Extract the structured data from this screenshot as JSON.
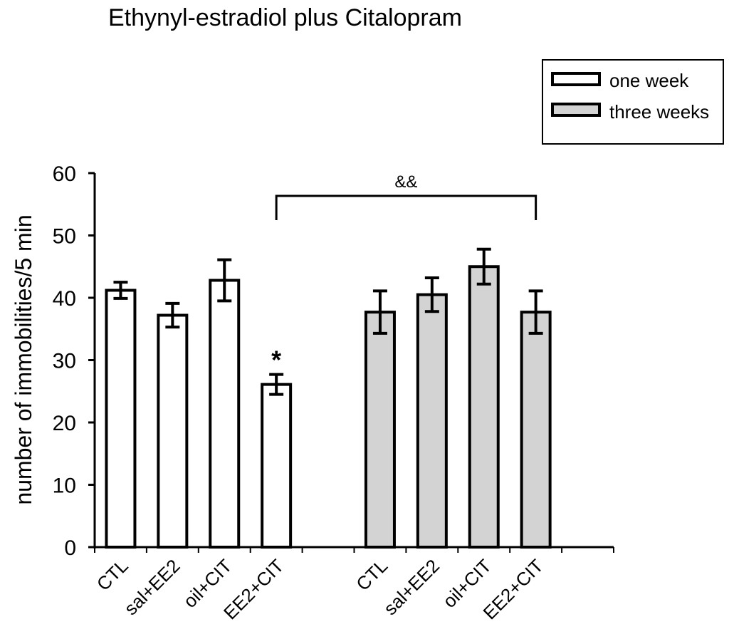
{
  "chart_data": {
    "type": "bar",
    "title": "Ethynyl-estradiol plus Citalopram",
    "ylabel": "number of immobilities/5 min",
    "xlabel": "",
    "ylim": [
      0,
      60
    ],
    "yticks": [
      "0",
      "10",
      "20",
      "30",
      "40",
      "50",
      "60"
    ],
    "legend_position": "top-right",
    "groups": [
      {
        "name": "one week",
        "color": "#ffffff",
        "categories": [
          "CTL",
          "sal+EE2",
          "oil+CIT",
          "EE2+CIT"
        ],
        "values": [
          41.2,
          37.2,
          42.8,
          26.1
        ],
        "errors": [
          1.3,
          1.9,
          3.3,
          1.6
        ]
      },
      {
        "name": "three weeks",
        "color": "#d3d3d3",
        "categories": [
          "CTL",
          "sal+EE2",
          "oil+CIT",
          "EE2+CIT"
        ],
        "values": [
          37.7,
          40.5,
          45.0,
          37.7
        ],
        "errors": [
          3.4,
          2.7,
          2.8,
          3.4
        ]
      }
    ],
    "annotations": {
      "significance_star": "*",
      "bracket_label": "&&"
    }
  }
}
